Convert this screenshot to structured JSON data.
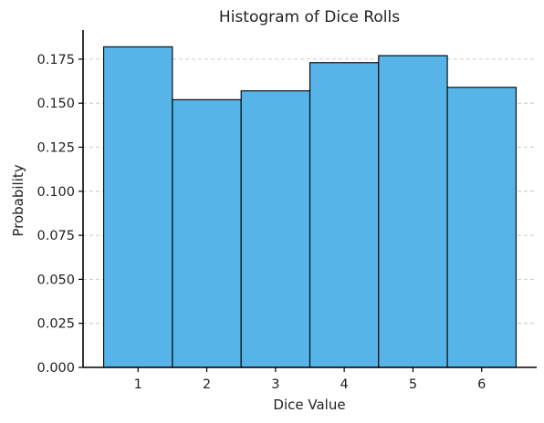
{
  "chart_data": {
    "type": "bar",
    "title": "Histogram of Dice Rolls",
    "xlabel": "Dice Value",
    "ylabel": "Probability",
    "categories": [
      "1",
      "2",
      "3",
      "4",
      "5",
      "6"
    ],
    "values": [
      0.182,
      0.152,
      0.157,
      0.173,
      0.177,
      0.159
    ],
    "xlim": [
      0.2,
      6.8
    ],
    "ylim": [
      0,
      0.1915
    ],
    "y_ticks": [
      0.0,
      0.025,
      0.05,
      0.075,
      0.1,
      0.125,
      0.15,
      0.175
    ],
    "y_tick_labels": [
      "0.000",
      "0.025",
      "0.050",
      "0.075",
      "0.100",
      "0.125",
      "0.150",
      "0.175"
    ],
    "grid": "y-dashed",
    "bar_color": "#56b4e9",
    "edge_color": "#000000"
  }
}
